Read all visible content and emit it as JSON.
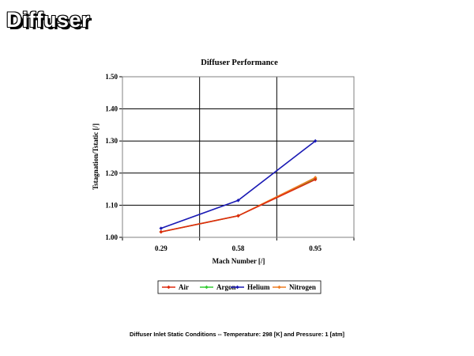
{
  "slide": {
    "title": "Diffuser",
    "footnote": "Diffuser Inlet Static Conditions --  Temperature:  298 [K] and Pressure:  1 [atm]"
  },
  "chart_data": {
    "type": "line",
    "title": "Diffuser Performance",
    "xlabel": "Mach Number [/]",
    "ylabel": "Tstagnation/Tstatic [/]",
    "categories": [
      "0.29",
      "0.58",
      "0.95"
    ],
    "ylim": [
      1.0,
      1.5
    ],
    "yticks": [
      "1.00",
      "1.10",
      "1.20",
      "1.30",
      "1.40",
      "1.50"
    ],
    "grid": true,
    "legend_position": "bottom",
    "series": [
      {
        "name": "Air",
        "color": "#dd2a0e",
        "values": [
          1.017,
          1.067,
          1.18
        ]
      },
      {
        "name": "Argon",
        "color": "#33cc33",
        "values": [
          1.017,
          1.067,
          1.183
        ]
      },
      {
        "name": "Helium",
        "color": "#1919b4",
        "values": [
          1.028,
          1.115,
          1.3
        ]
      },
      {
        "name": "Nitrogen",
        "color": "#ee7d22",
        "values": [
          1.017,
          1.067,
          1.186
        ]
      }
    ]
  }
}
